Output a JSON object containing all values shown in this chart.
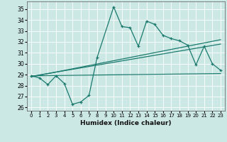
{
  "title": "",
  "xlabel": "Humidex (Indice chaleur)",
  "bg_color": "#cce8e4",
  "line_color": "#1a7a6e",
  "xlim": [
    -0.5,
    23.5
  ],
  "ylim": [
    25.7,
    35.7
  ],
  "yticks": [
    26,
    27,
    28,
    29,
    30,
    31,
    32,
    33,
    34,
    35
  ],
  "xticks": [
    0,
    1,
    2,
    3,
    4,
    5,
    6,
    7,
    8,
    9,
    10,
    11,
    12,
    13,
    14,
    15,
    16,
    17,
    18,
    19,
    20,
    21,
    22,
    23
  ],
  "main_x": [
    0,
    1,
    2,
    3,
    4,
    5,
    6,
    7,
    8,
    10,
    11,
    12,
    13,
    14,
    15,
    16,
    17,
    18,
    19,
    20,
    21,
    22,
    23
  ],
  "main_y": [
    28.9,
    28.7,
    28.1,
    28.9,
    28.2,
    26.3,
    26.5,
    27.1,
    30.6,
    35.2,
    33.4,
    33.3,
    31.6,
    33.9,
    33.6,
    32.6,
    32.3,
    32.1,
    31.7,
    29.9,
    31.6,
    30.0,
    29.4
  ],
  "line1_x": [
    0,
    23
  ],
  "line1_y": [
    28.9,
    29.1
  ],
  "line2_x": [
    0,
    23
  ],
  "line2_y": [
    28.85,
    31.8
  ],
  "line3_x": [
    0,
    23
  ],
  "line3_y": [
    28.8,
    32.2
  ]
}
